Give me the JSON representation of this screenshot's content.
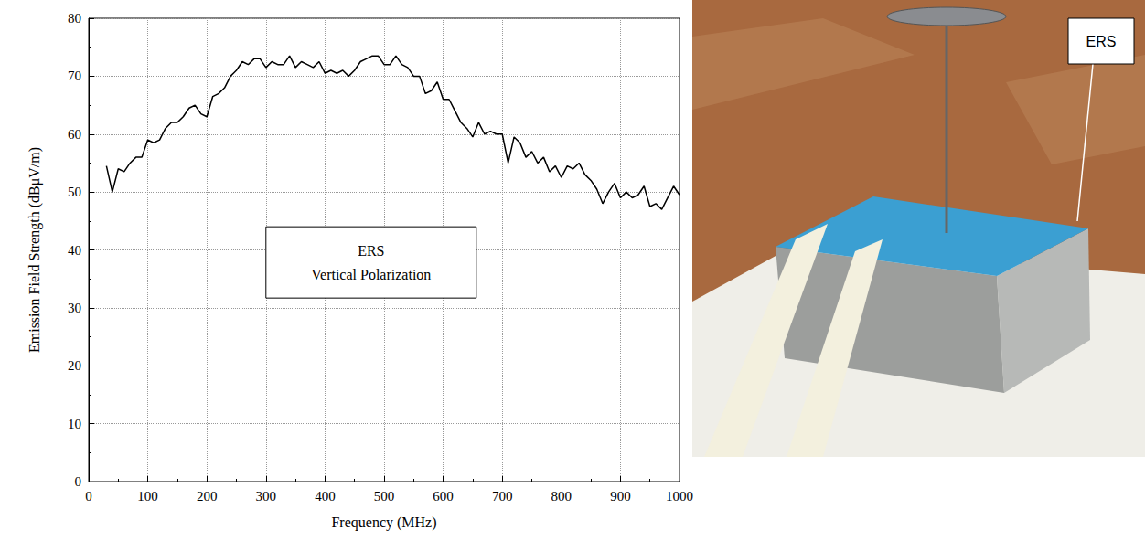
{
  "chart_data": {
    "type": "line",
    "xlabel": "Frequency (MHz)",
    "ylabel": "Emission Field Strength (dBμV/m)",
    "annotation": [
      "ERS",
      "Vertical Polarization"
    ],
    "x": [
      30,
      40,
      50,
      60,
      70,
      80,
      90,
      100,
      110,
      120,
      130,
      140,
      150,
      160,
      170,
      180,
      190,
      200,
      210,
      220,
      230,
      240,
      250,
      260,
      270,
      280,
      290,
      300,
      310,
      320,
      330,
      340,
      350,
      360,
      370,
      380,
      390,
      400,
      410,
      420,
      430,
      440,
      450,
      460,
      470,
      480,
      490,
      500,
      510,
      520,
      530,
      540,
      550,
      560,
      570,
      580,
      590,
      600,
      610,
      620,
      630,
      640,
      650,
      660,
      670,
      680,
      690,
      700,
      710,
      720,
      730,
      740,
      750,
      760,
      770,
      780,
      790,
      800,
      810,
      820,
      830,
      840,
      850,
      860,
      870,
      880,
      890,
      900,
      910,
      920,
      930,
      940,
      950,
      960,
      970,
      980,
      990,
      1000
    ],
    "values": [
      54.5,
      50,
      54,
      53.5,
      55,
      56,
      56,
      59,
      58.5,
      59,
      61,
      62,
      62,
      63,
      64.5,
      65,
      63.5,
      63,
      66.5,
      67,
      68,
      70,
      71,
      72.5,
      72,
      73,
      73,
      71.5,
      72.5,
      72,
      72,
      73.5,
      71.5,
      72.5,
      72,
      71.5,
      72.5,
      70.5,
      71,
      70.5,
      71,
      70,
      71,
      72.5,
      73,
      73.5,
      73.5,
      72,
      72,
      73.5,
      72,
      71.5,
      70,
      70,
      67,
      67.5,
      69,
      66,
      66,
      64,
      62,
      61,
      59.5,
      62,
      60,
      60.5,
      60,
      60,
      55,
      59.5,
      58.5,
      56,
      57,
      55,
      56,
      53.5,
      54.5,
      52.5,
      54.5,
      54,
      55,
      53,
      52,
      50.5,
      48,
      50,
      51.5,
      49,
      50,
      49,
      49.5,
      51,
      47.5,
      48,
      47,
      49,
      51,
      49.5
    ],
    "color": "#000000",
    "xlim": [
      0,
      1000
    ],
    "xticks": [
      0,
      100,
      200,
      300,
      400,
      500,
      600,
      700,
      800,
      900,
      1000
    ],
    "ylim": [
      0,
      80
    ],
    "yticks": [
      0,
      10,
      20,
      30,
      40,
      50,
      60,
      70,
      80
    ],
    "grid": true
  },
  "photo": {
    "label": "ERS"
  }
}
